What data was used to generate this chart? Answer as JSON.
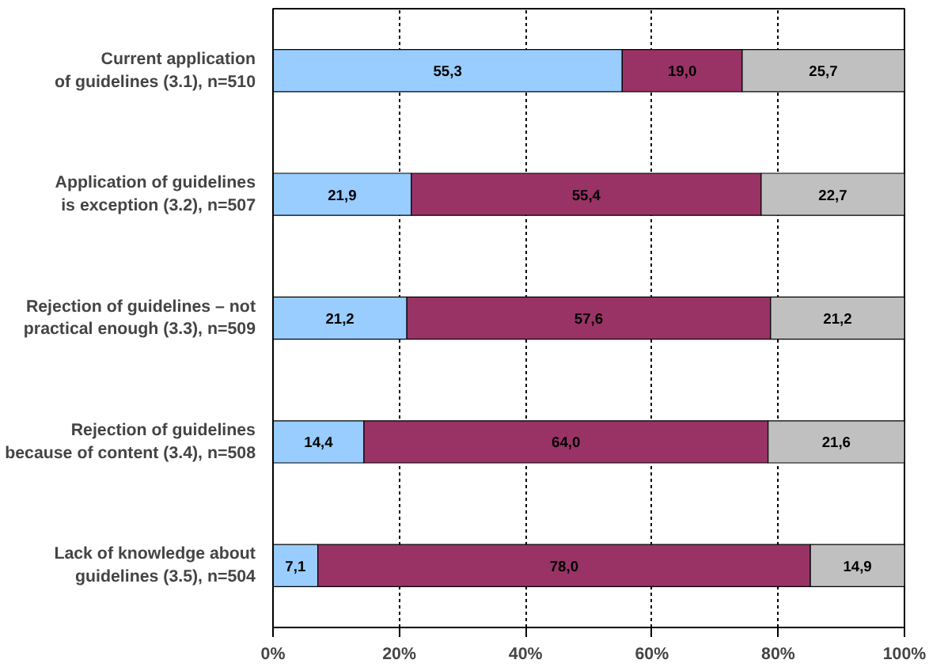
{
  "chart_data": {
    "type": "bar",
    "orientation": "horizontal",
    "stacked": true,
    "categories": [
      "Current application\nof guidelines (3.1), n=510",
      "Application of guidelines\nis exception (3.2), n=507",
      "Rejection of guidelines – not\npractical enough (3.3), n=509",
      "Rejection of guidelines\nbecause of content (3.4), n=508",
      "Lack of knowledge about\nguidelines (3.5), n=504"
    ],
    "series": [
      {
        "color": "#99ccff",
        "values": [
          55.3,
          21.9,
          21.2,
          14.4,
          7.1
        ],
        "value_labels": [
          "55,3",
          "21,9",
          "21,2",
          "14,4",
          "7,1"
        ]
      },
      {
        "color": "#993366",
        "values": [
          19.0,
          55.4,
          57.6,
          64.0,
          78.0
        ],
        "value_labels": [
          "19,0",
          "55,4",
          "57,6",
          "64,0",
          "78,0"
        ]
      },
      {
        "color": "#c0c0c0",
        "values": [
          25.7,
          22.7,
          21.2,
          21.6,
          14.9
        ],
        "value_labels": [
          "25,7",
          "22,7",
          "21,2",
          "21,6",
          "14,9"
        ]
      }
    ],
    "xlim": [
      0,
      100
    ],
    "xticks": [
      {
        "value": 0,
        "label": "0%"
      },
      {
        "value": 20,
        "label": "20%"
      },
      {
        "value": 40,
        "label": "40%"
      },
      {
        "value": 60,
        "label": "60%"
      },
      {
        "value": 80,
        "label": "80%"
      },
      {
        "value": 100,
        "label": "100%"
      }
    ],
    "grid": "x"
  }
}
